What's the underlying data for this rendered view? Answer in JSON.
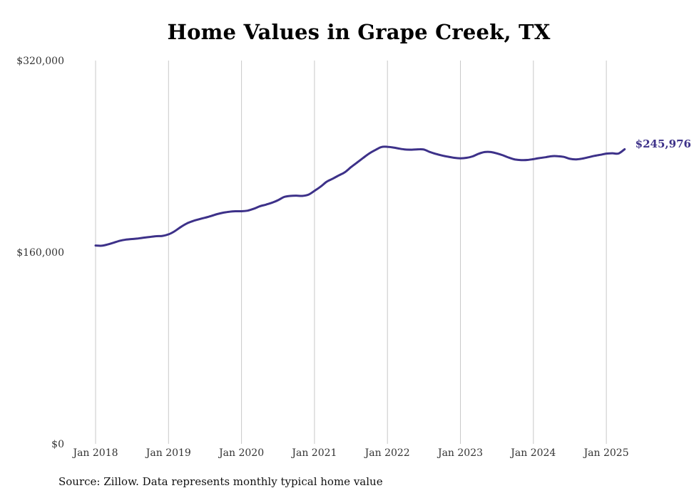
{
  "chart_data": {
    "type": "line",
    "title": "Home Values in Grape Creek, TX",
    "xlabel": "",
    "ylabel": "",
    "ylim": [
      0,
      320000
    ],
    "y_ticks": [
      0,
      160000,
      320000
    ],
    "y_tick_labels": [
      "$0",
      "$160,000",
      "$320,000"
    ],
    "x_ticks": [
      "2018-01",
      "2019-01",
      "2020-01",
      "2021-01",
      "2022-01",
      "2023-01",
      "2024-01",
      "2025-01"
    ],
    "x_tick_labels": [
      "Jan 2018",
      "Jan 2019",
      "Jan 2020",
      "Jan 2021",
      "Jan 2022",
      "Jan 2023",
      "Jan 2024",
      "Jan 2025"
    ],
    "grid": "vertical",
    "color": "#3d3189",
    "end_label": "$245,976",
    "series": [
      {
        "x": [
          "2018-01",
          "2018-02",
          "2018-03",
          "2018-04",
          "2018-05",
          "2018-06",
          "2018-07",
          "2018-08",
          "2018-09",
          "2018-10",
          "2018-11",
          "2018-12",
          "2019-01",
          "2019-02",
          "2019-03",
          "2019-04",
          "2019-05",
          "2019-06",
          "2019-07",
          "2019-08",
          "2019-09",
          "2019-10",
          "2019-11",
          "2019-12",
          "2020-01",
          "2020-02",
          "2020-03",
          "2020-04",
          "2020-05",
          "2020-06",
          "2020-07",
          "2020-08",
          "2020-09",
          "2020-10",
          "2020-11",
          "2020-12",
          "2021-01",
          "2021-02",
          "2021-03",
          "2021-04",
          "2021-05",
          "2021-06",
          "2021-07",
          "2021-08",
          "2021-09",
          "2021-10",
          "2021-11",
          "2021-12",
          "2022-01",
          "2022-02",
          "2022-03",
          "2022-04",
          "2022-05",
          "2022-06",
          "2022-07",
          "2022-08",
          "2022-09",
          "2022-10",
          "2022-11",
          "2022-12",
          "2023-01",
          "2023-02",
          "2023-03",
          "2023-04",
          "2023-05",
          "2023-06",
          "2023-07",
          "2023-08",
          "2023-09",
          "2023-10",
          "2023-11",
          "2023-12",
          "2024-01",
          "2024-02",
          "2024-03",
          "2024-04",
          "2024-05",
          "2024-06",
          "2024-07",
          "2024-08",
          "2024-09",
          "2024-10",
          "2024-11",
          "2024-12",
          "2025-01",
          "2025-02",
          "2025-03",
          "2025-04"
        ],
        "values": [
          165600,
          165400,
          166500,
          168000,
          169600,
          170500,
          171000,
          171500,
          172200,
          172800,
          173400,
          173600,
          174900,
          177500,
          181000,
          184000,
          186000,
          187500,
          188800,
          190200,
          191800,
          193000,
          193800,
          194200,
          194200,
          194700,
          196200,
          198300,
          199700,
          201300,
          203400,
          206100,
          207000,
          207200,
          207000,
          208000,
          211200,
          214700,
          218800,
          221400,
          224100,
          226800,
          231000,
          234800,
          238700,
          242400,
          245300,
          247800,
          248000,
          247400,
          246400,
          245700,
          245600,
          245900,
          245700,
          243600,
          242000,
          240700,
          239700,
          238800,
          238400,
          238800,
          240000,
          242200,
          243600,
          243600,
          242500,
          240900,
          238900,
          237400,
          236900,
          237000,
          237700,
          238600,
          239300,
          240200,
          240200,
          239600,
          238000,
          237500,
          238100,
          239200,
          240400,
          241300,
          242300,
          242600,
          242400,
          245976
        ]
      }
    ]
  },
  "source_note": "Source: Zillow. Data represents monthly typical home value"
}
